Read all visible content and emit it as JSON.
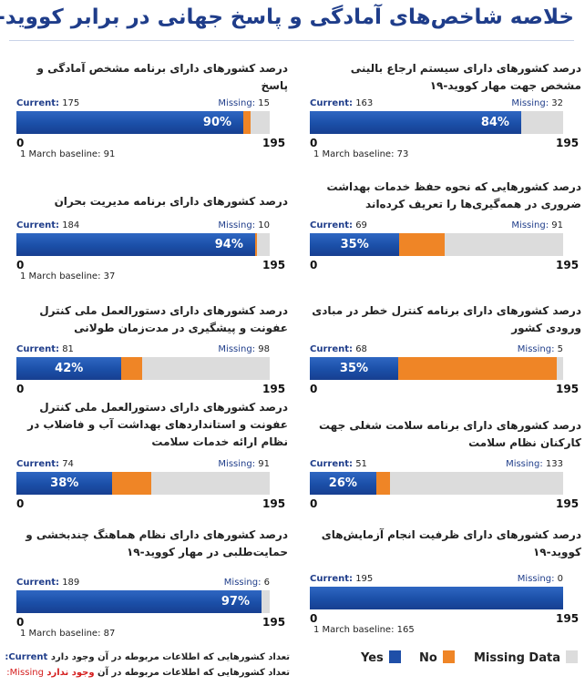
{
  "title": "خلاصه شاخص‌های آمادگی و پاسخ جهانی در برابر کووید-۱۹",
  "labels": {
    "current": "Current:",
    "missing": "Missing:",
    "axis_min": "0",
    "axis_max": "195",
    "baseline_prefix": "1 March baseline:"
  },
  "colors": {
    "yes": "#1f4fa8",
    "no": "#ef8526",
    "missing": "#dcdcdc",
    "title": "#1f3d8a"
  },
  "chart_data": [
    {
      "type": "bar",
      "orientation": "horizontal-stacked",
      "title": "درصد کشورهای دارای برنامه مشخص آمادگی و پاسخ",
      "current": 175,
      "missing": 15,
      "no": 5,
      "total": 195,
      "percent_label": "90%",
      "baseline": 91,
      "xlim": [
        0,
        195
      ]
    },
    {
      "type": "bar",
      "orientation": "horizontal-stacked",
      "title": "درصد کشورهای دارای سیستم ارجاع بالینی مشخص جهت مهار کووید-۱۹",
      "current": 163,
      "missing": 32,
      "no": 0,
      "total": 195,
      "percent_label": "84%",
      "baseline": 73,
      "xlim": [
        0,
        195
      ]
    },
    {
      "type": "bar",
      "orientation": "horizontal-stacked",
      "title": "درصد کشورهای دارای برنامه مدیریت بحران",
      "current": 184,
      "missing": 10,
      "no": 1,
      "total": 195,
      "percent_label": "94%",
      "baseline": 37,
      "xlim": [
        0,
        195
      ]
    },
    {
      "type": "bar",
      "orientation": "horizontal-stacked",
      "title": "درصد کشورهایی که نحوه حفظ خدمات بهداشت ضروری در همه‌گیری‌ها را تعریف کرده‌اند",
      "current": 69,
      "missing": 91,
      "no": 35,
      "total": 195,
      "percent_label": "35%",
      "baseline": null,
      "xlim": [
        0,
        195
      ]
    },
    {
      "type": "bar",
      "orientation": "horizontal-stacked",
      "title": "درصد کشورهای دارای دستورالعمل ملی کنترل عفونت و پیشگیری در مدت‌زمان طولانی",
      "current": 81,
      "missing": 98,
      "no": 16,
      "total": 195,
      "percent_label": "42%",
      "baseline": null,
      "xlim": [
        0,
        195
      ]
    },
    {
      "type": "bar",
      "orientation": "horizontal-stacked",
      "title": "درصد کشورهای دارای برنامه کنترل خطر در مبادی ورودی کشور",
      "current": 68,
      "missing": 5,
      "no": 122,
      "total": 195,
      "percent_label": "35%",
      "baseline": null,
      "xlim": [
        0,
        195
      ]
    },
    {
      "type": "bar",
      "orientation": "horizontal-stacked",
      "title": "درصد کشورهای دارای دستورالعمل ملی کنترل عفونت و استانداردهای بهداشت آب و فاضلاب در نظام ارائه خدمات سلامت",
      "current": 74,
      "missing": 91,
      "no": 30,
      "total": 195,
      "percent_label": "38%",
      "baseline": null,
      "xlim": [
        0,
        195
      ]
    },
    {
      "type": "bar",
      "orientation": "horizontal-stacked",
      "title": "درصد کشورهای دارای برنامه سلامت شغلی جهت کارکنان نظام سلامت",
      "current": 51,
      "missing": 133,
      "no": 11,
      "total": 195,
      "percent_label": "26%",
      "baseline": null,
      "xlim": [
        0,
        195
      ]
    },
    {
      "type": "bar",
      "orientation": "horizontal-stacked",
      "title": "درصد کشورهای دارای نظام هماهنگ چندبخشی و حمایت‌طلبی در مهار کووید-۱۹",
      "current": 189,
      "missing": 6,
      "no": 0,
      "total": 195,
      "percent_label": "97%",
      "baseline": 87,
      "xlim": [
        0,
        195
      ]
    },
    {
      "type": "bar",
      "orientation": "horizontal-stacked",
      "title": "درصد کشورهای دارای ظرفیت انجام آزمایش‌های کووید-۱۹",
      "current": 195,
      "missing": 0,
      "no": 0,
      "total": 195,
      "percent_label": "",
      "baseline": 165,
      "xlim": [
        0,
        195
      ]
    }
  ],
  "legend": {
    "yes": "Yes",
    "no": "No",
    "missing": "Missing Data"
  },
  "notes": {
    "current_key": "Current:",
    "current_text": "تعداد کشورهایی که اطلاعات مربوطه در آن وجود دارد",
    "missing_key": "Missing:",
    "missing_text_a": "تعداد کشورهایی که اطلاعات مربوطه در آن ",
    "missing_text_b": "وجود ندارد"
  }
}
